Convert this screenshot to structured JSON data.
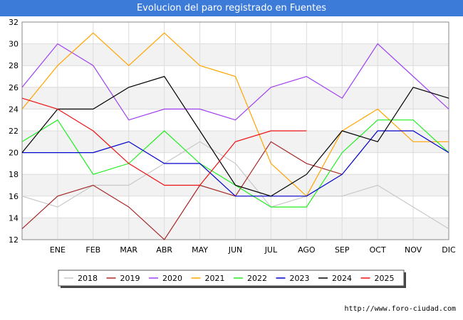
{
  "title": "Evolucion del paro registrado en Fuentes",
  "source": "http://www.foro-ciudad.com",
  "chart_data": {
    "type": "line",
    "title": "Evolucion del paro registrado en Fuentes",
    "xlabel": "",
    "ylabel": "",
    "categories": [
      "",
      "ENE",
      "FEB",
      "MAR",
      "ABR",
      "MAY",
      "JUN",
      "JUL",
      "AGO",
      "SEP",
      "OCT",
      "NOV",
      "DIC"
    ],
    "ylim": [
      12,
      32
    ],
    "yticks": [
      12,
      14,
      16,
      18,
      20,
      22,
      24,
      26,
      28,
      30,
      32
    ],
    "grid": true,
    "legend_position": "bottom",
    "series": [
      {
        "name": "2018",
        "color": "#c8c8c8",
        "values": [
          16,
          15,
          17,
          17,
          19,
          21,
          19,
          15,
          16,
          16,
          17,
          15,
          13
        ]
      },
      {
        "name": "2019",
        "color": "#a52a2a",
        "values": [
          13,
          16,
          17,
          15,
          12,
          17,
          16,
          21,
          19,
          18,
          null,
          null,
          null
        ]
      },
      {
        "name": "2020",
        "color": "#a040f0",
        "values": [
          26,
          30,
          28,
          23,
          24,
          24,
          23,
          26,
          27,
          25,
          30,
          27,
          24
        ]
      },
      {
        "name": "2021",
        "color": "#ffa500",
        "values": [
          24,
          28,
          31,
          28,
          31,
          28,
          27,
          19,
          16,
          22,
          24,
          21,
          21
        ]
      },
      {
        "name": "2022",
        "color": "#22ee22",
        "values": [
          21,
          23,
          18,
          19,
          22,
          19,
          17,
          15,
          15,
          20,
          23,
          23,
          20
        ]
      },
      {
        "name": "2023",
        "color": "#0000cc",
        "values": [
          20,
          20,
          20,
          21,
          19,
          19,
          16,
          16,
          16,
          18,
          22,
          22,
          20
        ]
      },
      {
        "name": "2024",
        "color": "#000000",
        "values": [
          20,
          24,
          24,
          26,
          27,
          22,
          17,
          16,
          18,
          22,
          21,
          26,
          25
        ]
      },
      {
        "name": "2025",
        "color": "#ee1111",
        "values": [
          25,
          24,
          22,
          19,
          17,
          17,
          21,
          22,
          22,
          null,
          null,
          null,
          null
        ]
      }
    ]
  }
}
